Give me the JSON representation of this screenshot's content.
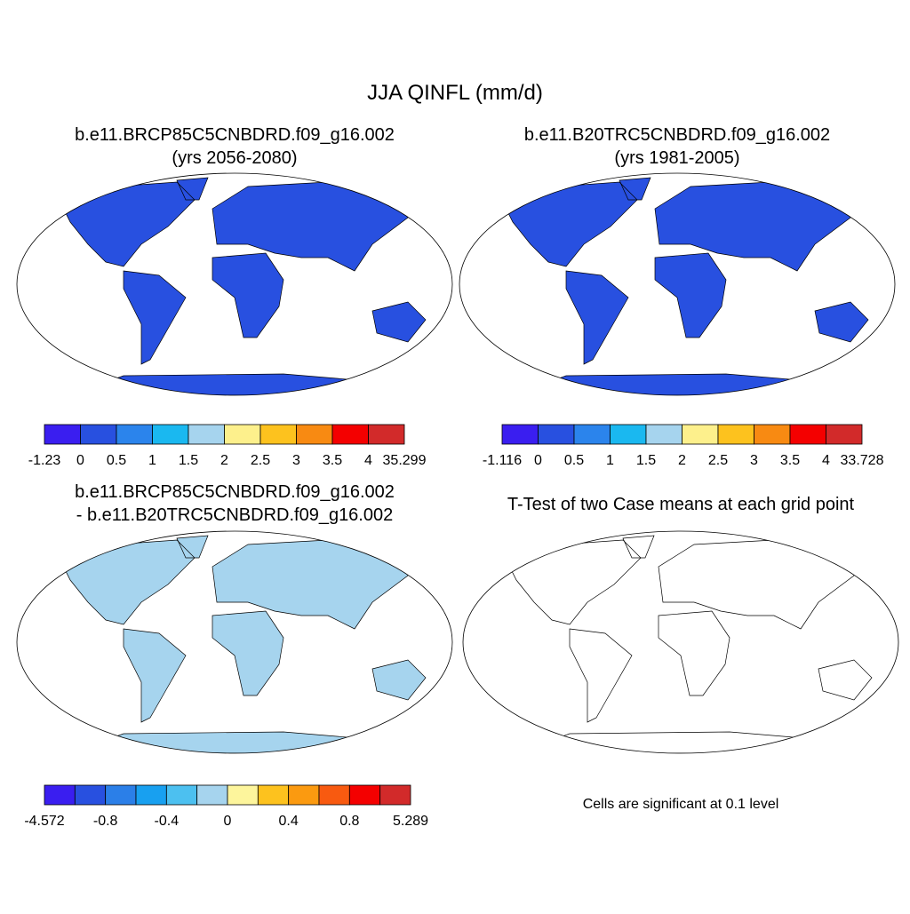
{
  "title": "JJA QINFL (mm/d)",
  "panels": [
    {
      "title": [
        "b.e11.BRCP85C5CNBDRD.f09_g16.002",
        "(yrs 2056-2080)"
      ],
      "colorbar": {
        "colors": [
          "#3a1ef0",
          "#2850e0",
          "#2b84ec",
          "#1ab8f0",
          "#a6d4ee",
          "#fdf08c",
          "#fdc21e",
          "#f88a12",
          "#f40000",
          "#d22a2a"
        ],
        "labels": [
          "-1.23",
          "0",
          "0.5",
          "1",
          "1.5",
          "2",
          "2.5",
          "3",
          "3.5",
          "4",
          "35.299"
        ]
      }
    },
    {
      "title": [
        "b.e11.B20TRC5CNBDRD.f09_g16.002",
        "(yrs 1981-2005)"
      ],
      "colorbar": {
        "colors": [
          "#3a1ef0",
          "#2850e0",
          "#2b84ec",
          "#1ab8f0",
          "#a6d4ee",
          "#fdf08c",
          "#fdc21e",
          "#f88a12",
          "#f40000",
          "#d22a2a"
        ],
        "labels": [
          "-1.116",
          "0",
          "0.5",
          "1",
          "1.5",
          "2",
          "2.5",
          "3",
          "3.5",
          "4",
          "33.728"
        ]
      }
    },
    {
      "title": [
        "b.e11.BRCP85C5CNBDRD.f09_g16.002",
        "- b.e11.B20TRC5CNBDRD.f09_g16.002"
      ],
      "colorbar": {
        "colors": [
          "#3a1ef0",
          "#2850e0",
          "#2b7fe8",
          "#18a0f0",
          "#4cc0f0",
          "#a6d4ee",
          "#fdf59c",
          "#fdc21e",
          "#fb9a10",
          "#f85a10",
          "#f40000",
          "#d22a2a"
        ],
        "labels": [
          "-4.572",
          null,
          "-0.8",
          null,
          "-0.4",
          null,
          "0",
          null,
          "0.4",
          null,
          "0.8",
          null,
          "5.289"
        ]
      }
    },
    {
      "title": [
        "T-Test of two Case means at each grid point"
      ],
      "note": "Cells are significant at 0.1 level"
    }
  ]
}
